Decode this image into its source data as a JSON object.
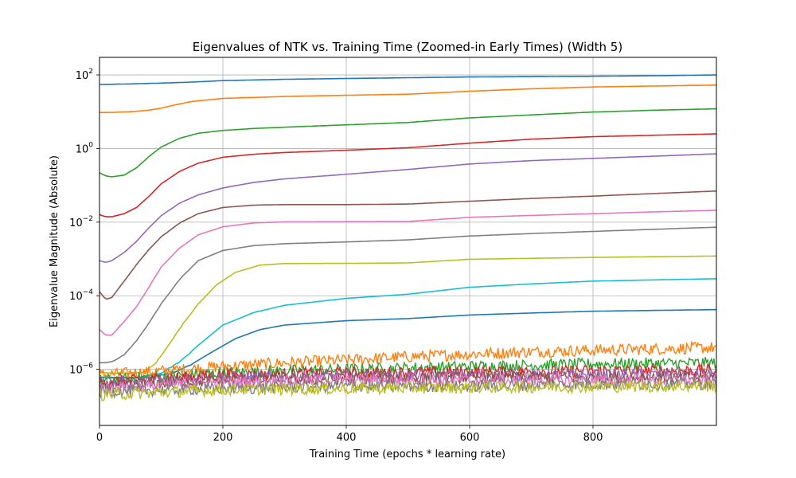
{
  "chart_data": {
    "type": "line",
    "title": "Eigenvalues of NTK vs. Training Time (Zoomed-in Early Times) (Width 5)",
    "xlabel": "Training Time (epochs * learning rate)",
    "ylabel": "Eigenvalue Magnitude (Absolute)",
    "x_scale": "linear",
    "y_scale": "log",
    "xlim": [
      0,
      1000
    ],
    "ylim": [
      3e-08,
      300
    ],
    "grid": true,
    "legend": "none",
    "x_ticks": [
      {
        "value": 0,
        "label": "0"
      },
      {
        "value": 200,
        "label": "200"
      },
      {
        "value": 400,
        "label": "400"
      },
      {
        "value": 600,
        "label": "600"
      },
      {
        "value": 800,
        "label": "800"
      }
    ],
    "y_ticks": [
      {
        "value": 100,
        "label": "10",
        "sup": "2"
      },
      {
        "value": 1,
        "label": "10",
        "sup": "0"
      },
      {
        "value": 0.01,
        "label": "10",
        "sup": "−2"
      },
      {
        "value": 0.0001,
        "label": "10",
        "sup": "−4"
      },
      {
        "value": 1e-06,
        "label": "10",
        "sup": "−6"
      }
    ],
    "series": [
      {
        "color": "#1f77b4",
        "x": [
          0,
          50,
          100,
          150,
          200,
          300,
          400,
          500,
          600,
          700,
          800,
          900,
          1000
        ],
        "values": [
          55,
          57,
          60,
          64,
          70,
          76,
          80,
          84,
          88,
          90,
          92,
          95,
          100
        ]
      },
      {
        "color": "#ff7f0e",
        "x": [
          0,
          20,
          50,
          80,
          100,
          120,
          150,
          200,
          300,
          400,
          500,
          600,
          700,
          800,
          900,
          1000
        ],
        "values": [
          9.5,
          9.6,
          10,
          11,
          12.5,
          15,
          19,
          23,
          26,
          28,
          30,
          36,
          42,
          47,
          50,
          53
        ]
      },
      {
        "color": "#2ca02c",
        "x": [
          0,
          10,
          20,
          40,
          60,
          80,
          100,
          130,
          160,
          200,
          250,
          300,
          400,
          500,
          600,
          700,
          800,
          900,
          1000
        ],
        "values": [
          0.22,
          0.18,
          0.17,
          0.19,
          0.3,
          0.6,
          1.1,
          1.9,
          2.6,
          3.1,
          3.5,
          3.8,
          4.4,
          5.1,
          6.8,
          8.2,
          9.8,
          11,
          12
        ]
      },
      {
        "color": "#d62728",
        "x": [
          0,
          10,
          20,
          40,
          60,
          80,
          100,
          130,
          160,
          200,
          250,
          300,
          400,
          500,
          600,
          700,
          800,
          900,
          1000
        ],
        "values": [
          0.016,
          0.014,
          0.014,
          0.017,
          0.025,
          0.05,
          0.11,
          0.24,
          0.4,
          0.58,
          0.7,
          0.78,
          0.9,
          1.05,
          1.4,
          1.8,
          2.1,
          2.3,
          2.5
        ]
      },
      {
        "color": "#9467bd",
        "x": [
          0,
          10,
          20,
          40,
          60,
          80,
          100,
          130,
          160,
          200,
          250,
          300,
          400,
          500,
          600,
          700,
          800,
          900,
          1000
        ],
        "values": [
          0.0009,
          0.0008,
          0.0009,
          0.0015,
          0.003,
          0.007,
          0.015,
          0.033,
          0.055,
          0.085,
          0.12,
          0.15,
          0.2,
          0.27,
          0.38,
          0.47,
          0.54,
          0.62,
          0.72
        ]
      },
      {
        "color": "#8c564b",
        "x": [
          0,
          10,
          20,
          40,
          60,
          80,
          100,
          130,
          160,
          200,
          250,
          300,
          400,
          500,
          600,
          700,
          800,
          900,
          1000
        ],
        "values": [
          0.00013,
          8e-05,
          9e-05,
          0.00025,
          0.0007,
          0.0018,
          0.004,
          0.0095,
          0.017,
          0.025,
          0.029,
          0.03,
          0.03,
          0.031,
          0.037,
          0.044,
          0.051,
          0.06,
          0.07
        ]
      },
      {
        "color": "#e377c2",
        "x": [
          0,
          10,
          20,
          40,
          60,
          80,
          100,
          130,
          160,
          200,
          250,
          300,
          400,
          500,
          600,
          700,
          800,
          900,
          1000
        ],
        "values": [
          1.2e-05,
          8.5e-06,
          8.5e-06,
          2e-05,
          5e-05,
          0.00017,
          0.0006,
          0.002,
          0.0045,
          0.0075,
          0.0095,
          0.0102,
          0.0103,
          0.0104,
          0.0135,
          0.0152,
          0.017,
          0.019,
          0.021
        ]
      },
      {
        "color": "#7f7f7f",
        "x": [
          0,
          20,
          40,
          60,
          80,
          100,
          130,
          160,
          200,
          250,
          300,
          400,
          500,
          600,
          700,
          800,
          900,
          1000
        ],
        "values": [
          1.5e-06,
          1.6e-06,
          2.5e-06,
          6e-06,
          1.8e-05,
          6e-05,
          0.00028,
          0.0009,
          0.0017,
          0.0023,
          0.0026,
          0.0029,
          0.0033,
          0.0042,
          0.0049,
          0.0056,
          0.0064,
          0.0073
        ]
      },
      {
        "color": "#bcbd22",
        "x": [
          0,
          40,
          70,
          90,
          110,
          130,
          160,
          190,
          220,
          260,
          300,
          400,
          500,
          600,
          700,
          800,
          900,
          1000
        ],
        "values": [
          8e-07,
          8e-07,
          8e-07,
          1.4e-06,
          4e-06,
          1.3e-05,
          6e-05,
          0.0002,
          0.00043,
          0.00068,
          0.00075,
          0.00076,
          0.00078,
          0.00098,
          0.00104,
          0.0011,
          0.00115,
          0.0012
        ]
      },
      {
        "color": "#17becf",
        "x": [
          0,
          60,
          100,
          130,
          160,
          200,
          250,
          300,
          400,
          500,
          600,
          700,
          800,
          900,
          1000
        ],
        "values": [
          6e-07,
          6e-07,
          8e-07,
          1.6e-06,
          4.5e-06,
          1.6e-05,
          3.5e-05,
          5.5e-05,
          8.5e-05,
          0.00011,
          0.00017,
          0.00021,
          0.00025,
          0.00027,
          0.00029
        ]
      },
      {
        "color": "#1f77b4",
        "x": [
          0,
          80,
          120,
          150,
          180,
          220,
          260,
          300,
          400,
          500,
          600,
          700,
          800,
          900,
          1000
        ],
        "values": [
          6e-07,
          6e-07,
          8e-07,
          1.4e-06,
          2.8e-06,
          6.8e-06,
          1.2e-05,
          1.6e-05,
          2.1e-05,
          2.4e-05,
          3e-05,
          3.4e-05,
          3.8e-05,
          4e-05,
          4.2e-05
        ]
      },
      {
        "color": "#ff7f0e",
        "x": [
          0,
          100,
          200,
          300,
          400,
          500,
          600,
          700,
          800,
          900,
          1000
        ],
        "values": [
          7e-07,
          9e-07,
          1.2e-06,
          1.5e-06,
          1.8e-06,
          2.2e-06,
          2.6e-06,
          3e-06,
          3.3e-06,
          3.6e-06,
          3.9e-06
        ]
      },
      {
        "color": "#2ca02c",
        "x": [
          0,
          200,
          400,
          600,
          800,
          1000
        ],
        "values": [
          5e-07,
          8e-07,
          1e-06,
          1.2e-06,
          1.4e-06,
          1.5e-06
        ]
      },
      {
        "color": "#d62728",
        "x": [
          0,
          200,
          400,
          600,
          800,
          1000
        ],
        "values": [
          4.5e-07,
          7e-07,
          8e-07,
          8.5e-07,
          9e-07,
          9.5e-07
        ]
      },
      {
        "color": "#9467bd",
        "x": [
          0,
          200,
          400,
          600,
          800,
          1000
        ],
        "values": [
          4e-07,
          6e-07,
          6.5e-07,
          7e-07,
          7e-07,
          7.5e-07
        ]
      },
      {
        "color": "#8c564b",
        "x": [
          0,
          200,
          400,
          600,
          800,
          1000
        ],
        "values": [
          3.5e-07,
          5e-07,
          5.5e-07,
          6e-07,
          6e-07,
          6e-07
        ]
      },
      {
        "color": "#e377c2",
        "x": [
          0,
          200,
          400,
          600,
          800,
          1000
        ],
        "values": [
          3e-07,
          4.5e-07,
          5e-07,
          5e-07,
          5e-07,
          5e-07
        ]
      },
      {
        "color": "#7f7f7f",
        "x": [
          0,
          200,
          400,
          600,
          800,
          1000
        ],
        "values": [
          2.5e-07,
          3e-07,
          3.5e-07,
          3.5e-07,
          4e-07,
          4e-07
        ]
      },
      {
        "color": "#bcbd22",
        "x": [
          0,
          200,
          400,
          600,
          800,
          1000
        ],
        "values": [
          2e-07,
          2.8e-07,
          3e-07,
          3.2e-07,
          3.4e-07,
          3.5e-07
        ]
      }
    ]
  }
}
